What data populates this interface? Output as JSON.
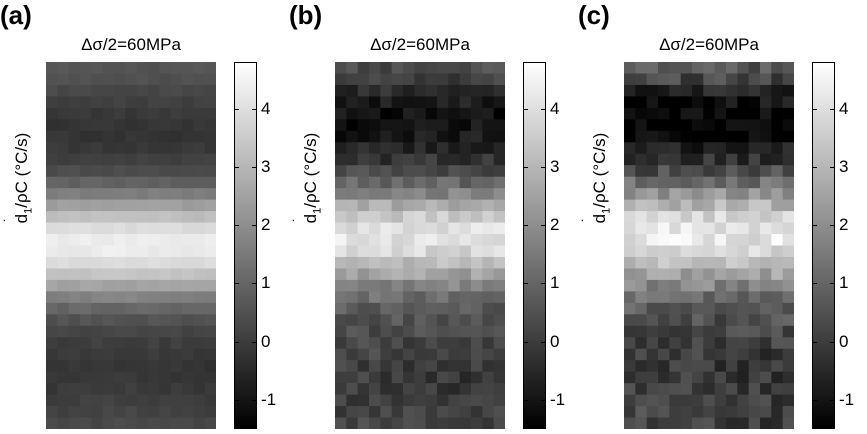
{
  "chart_data": [
    {
      "type": "heatmap",
      "panel_label": "(a)",
      "title": "Δσ/2=60MPa",
      "ylabel_parts": [
        "d",
        "1",
        "/ρC (°C/s)"
      ],
      "colormap": "gray",
      "colorbar": {
        "vmin": -1.5,
        "vmax": 4.8,
        "ticks": [
          -1,
          0,
          1,
          2,
          3,
          4
        ]
      },
      "grid": {
        "rows": 32,
        "cols": 15
      },
      "row_profile_top_to_bottom": [
        0.6,
        0.5,
        0.3,
        0.1,
        -0.1,
        -0.2,
        -0.2,
        -0.1,
        0.1,
        0.4,
        0.9,
        1.6,
        2.4,
        3.2,
        3.9,
        4.3,
        4.3,
        3.9,
        3.3,
        2.5,
        1.7,
        1.0,
        0.5,
        0.2,
        0.0,
        -0.1,
        -0.2,
        -0.2,
        -0.1,
        0.0,
        0.1,
        0.2
      ],
      "noise_level": 0.12
    },
    {
      "type": "heatmap",
      "panel_label": "(b)",
      "title": "Δσ/2=60MPa",
      "ylabel_parts": [
        "d",
        "1",
        "/ρC (°C/s)"
      ],
      "colormap": "gray",
      "colorbar": {
        "vmin": -1.5,
        "vmax": 4.8,
        "ticks": [
          -1,
          0,
          1,
          2,
          3,
          4
        ]
      },
      "grid": {
        "rows": 32,
        "cols": 15
      },
      "row_profile_top_to_bottom": [
        0.3,
        0.0,
        -0.4,
        -0.8,
        -1.1,
        -1.1,
        -0.9,
        -0.6,
        -0.2,
        0.3,
        1.0,
        1.8,
        2.7,
        3.5,
        4.0,
        4.1,
        3.8,
        3.2,
        2.5,
        1.8,
        1.2,
        0.8,
        0.5,
        0.3,
        0.2,
        0.1,
        0.0,
        -0.1,
        -0.1,
        0.0,
        0.1,
        0.1
      ],
      "noise_level": 0.45
    },
    {
      "type": "heatmap",
      "panel_label": "(c)",
      "title": "Δσ/2=60MPa",
      "ylabel_parts": [
        "d",
        "1",
        "/ρC (°C/s)"
      ],
      "colormap": "gray",
      "colorbar": {
        "vmin": -1.5,
        "vmax": 4.8,
        "ticks": [
          -1,
          0,
          1,
          2,
          3,
          4
        ]
      },
      "grid": {
        "rows": 32,
        "cols": 15
      },
      "row_profile_top_to_bottom": [
        0.6,
        0.2,
        -0.5,
        -1.1,
        -1.4,
        -1.4,
        -1.2,
        -0.8,
        -0.3,
        0.4,
        1.2,
        2.1,
        3.0,
        3.8,
        4.2,
        4.2,
        3.9,
        3.3,
        2.5,
        1.8,
        1.2,
        0.8,
        0.5,
        0.3,
        0.1,
        0.0,
        -0.1,
        -0.1,
        0.0,
        0.0,
        0.1,
        0.1
      ],
      "noise_level": 0.6
    }
  ]
}
